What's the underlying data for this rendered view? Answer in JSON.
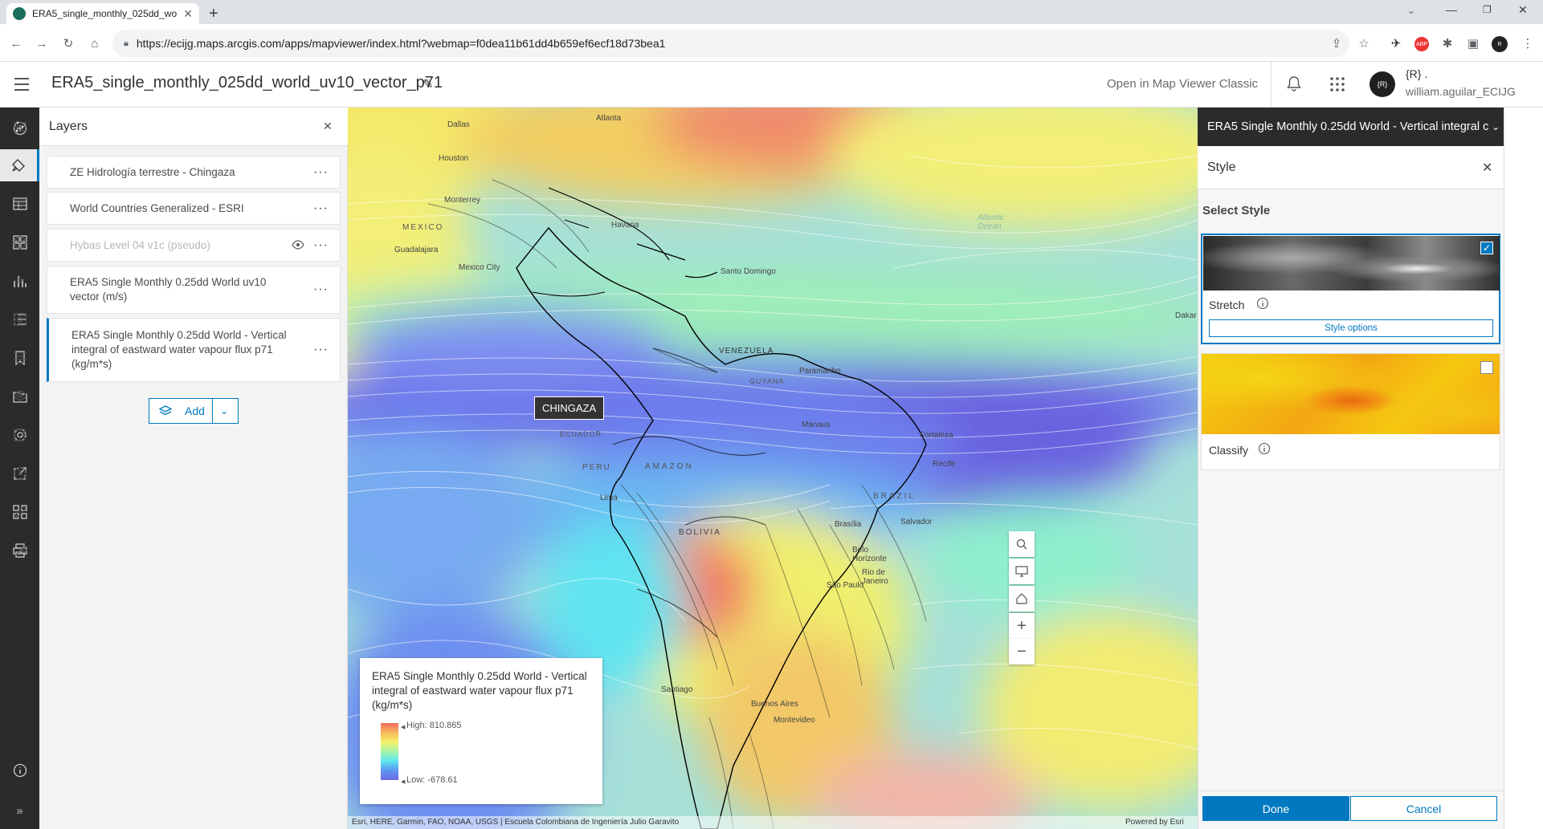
{
  "browser": {
    "tab_title": "ERA5_single_monthly_025dd_wo",
    "url": "https://ecijg.maps.arcgis.com/apps/mapviewer/index.html?webmap=f0dea11b61dd4b659ef6ecf18d73bea1"
  },
  "header": {
    "title": "ERA5_single_monthly_025dd_world_uv10_vector_p71",
    "classic_link": "Open in Map Viewer Classic",
    "user_initials": "{R} .",
    "user_name": "william.aguilar_ECIJG",
    "avatar_text": "{R}"
  },
  "layers_panel": {
    "title": "Layers",
    "layers": [
      {
        "title": "ZE Hidrología terrestre - Chingaza",
        "dimmed": false
      },
      {
        "title": "World Countries Generalized - ESRI",
        "dimmed": false
      },
      {
        "title": "Hybas Level 04 v1c (pseudo)",
        "dimmed": true
      },
      {
        "title": "ERA5 Single Monthly 0.25dd World uv10 vector (m/s)",
        "dimmed": false
      },
      {
        "title": "ERA5 Single Monthly 0.25dd World - Vertical integral of eastward water vapour flux p71 (kg/m*s)",
        "dimmed": false,
        "selected": true
      }
    ],
    "add_label": "Add"
  },
  "map": {
    "popup_label": "CHINGAZA",
    "attribution": "Esri, HERE, Garmin, FAO, NOAA, USGS | Escuela Colombiana de Ingeniería Julio Garavito",
    "powered_by": "Powered by Esri",
    "labels": [
      "Dallas",
      "Atlanta",
      "Houston",
      "MEXICO",
      "Monterrey",
      "Havana",
      "Guadalajara",
      "Mexico City",
      "Santo Domingo",
      "VENEZUELA",
      "Paramaribo",
      "Manaus",
      "Fortaleza",
      "Recife",
      "PERU",
      "AMAZON",
      "Lima",
      "BOLIVIA",
      "BRAZIL",
      "Salvador",
      "Brasília",
      "Belo Horizonte",
      "Rio de Janeiro",
      "São Paulo",
      "Santiago",
      "Buenos Aires",
      "Montevideo",
      "Dakar",
      "Atlantic Ocean",
      "ECUADOR",
      "GUYANA"
    ]
  },
  "legend": {
    "title": "ERA5 Single Monthly 0.25dd World - Vertical integral of eastward water vapour flux p71 (kg/m*s)",
    "high": "High: 810.865",
    "low": "Low: -678.61",
    "ramp_colors": [
      "#f56a5e",
      "#f7b95c",
      "#f3f16a",
      "#a6f4a8",
      "#5ee6f0",
      "#5b95ef",
      "#6d6be8"
    ]
  },
  "style_panel": {
    "layer_dropdown": "ERA5 Single Monthly 0.25dd World - Vertical integral c",
    "title": "Style",
    "select_style": "Select Style",
    "stretch_label": "Stretch",
    "stretch_options": "Style options",
    "stretch_checked": true,
    "classify_label": "Classify",
    "classify_checked": false,
    "done_label": "Done",
    "cancel_label": "Cancel"
  },
  "colors": {
    "accent": "#0079c1",
    "dark_bar": "#2b2b2b"
  }
}
